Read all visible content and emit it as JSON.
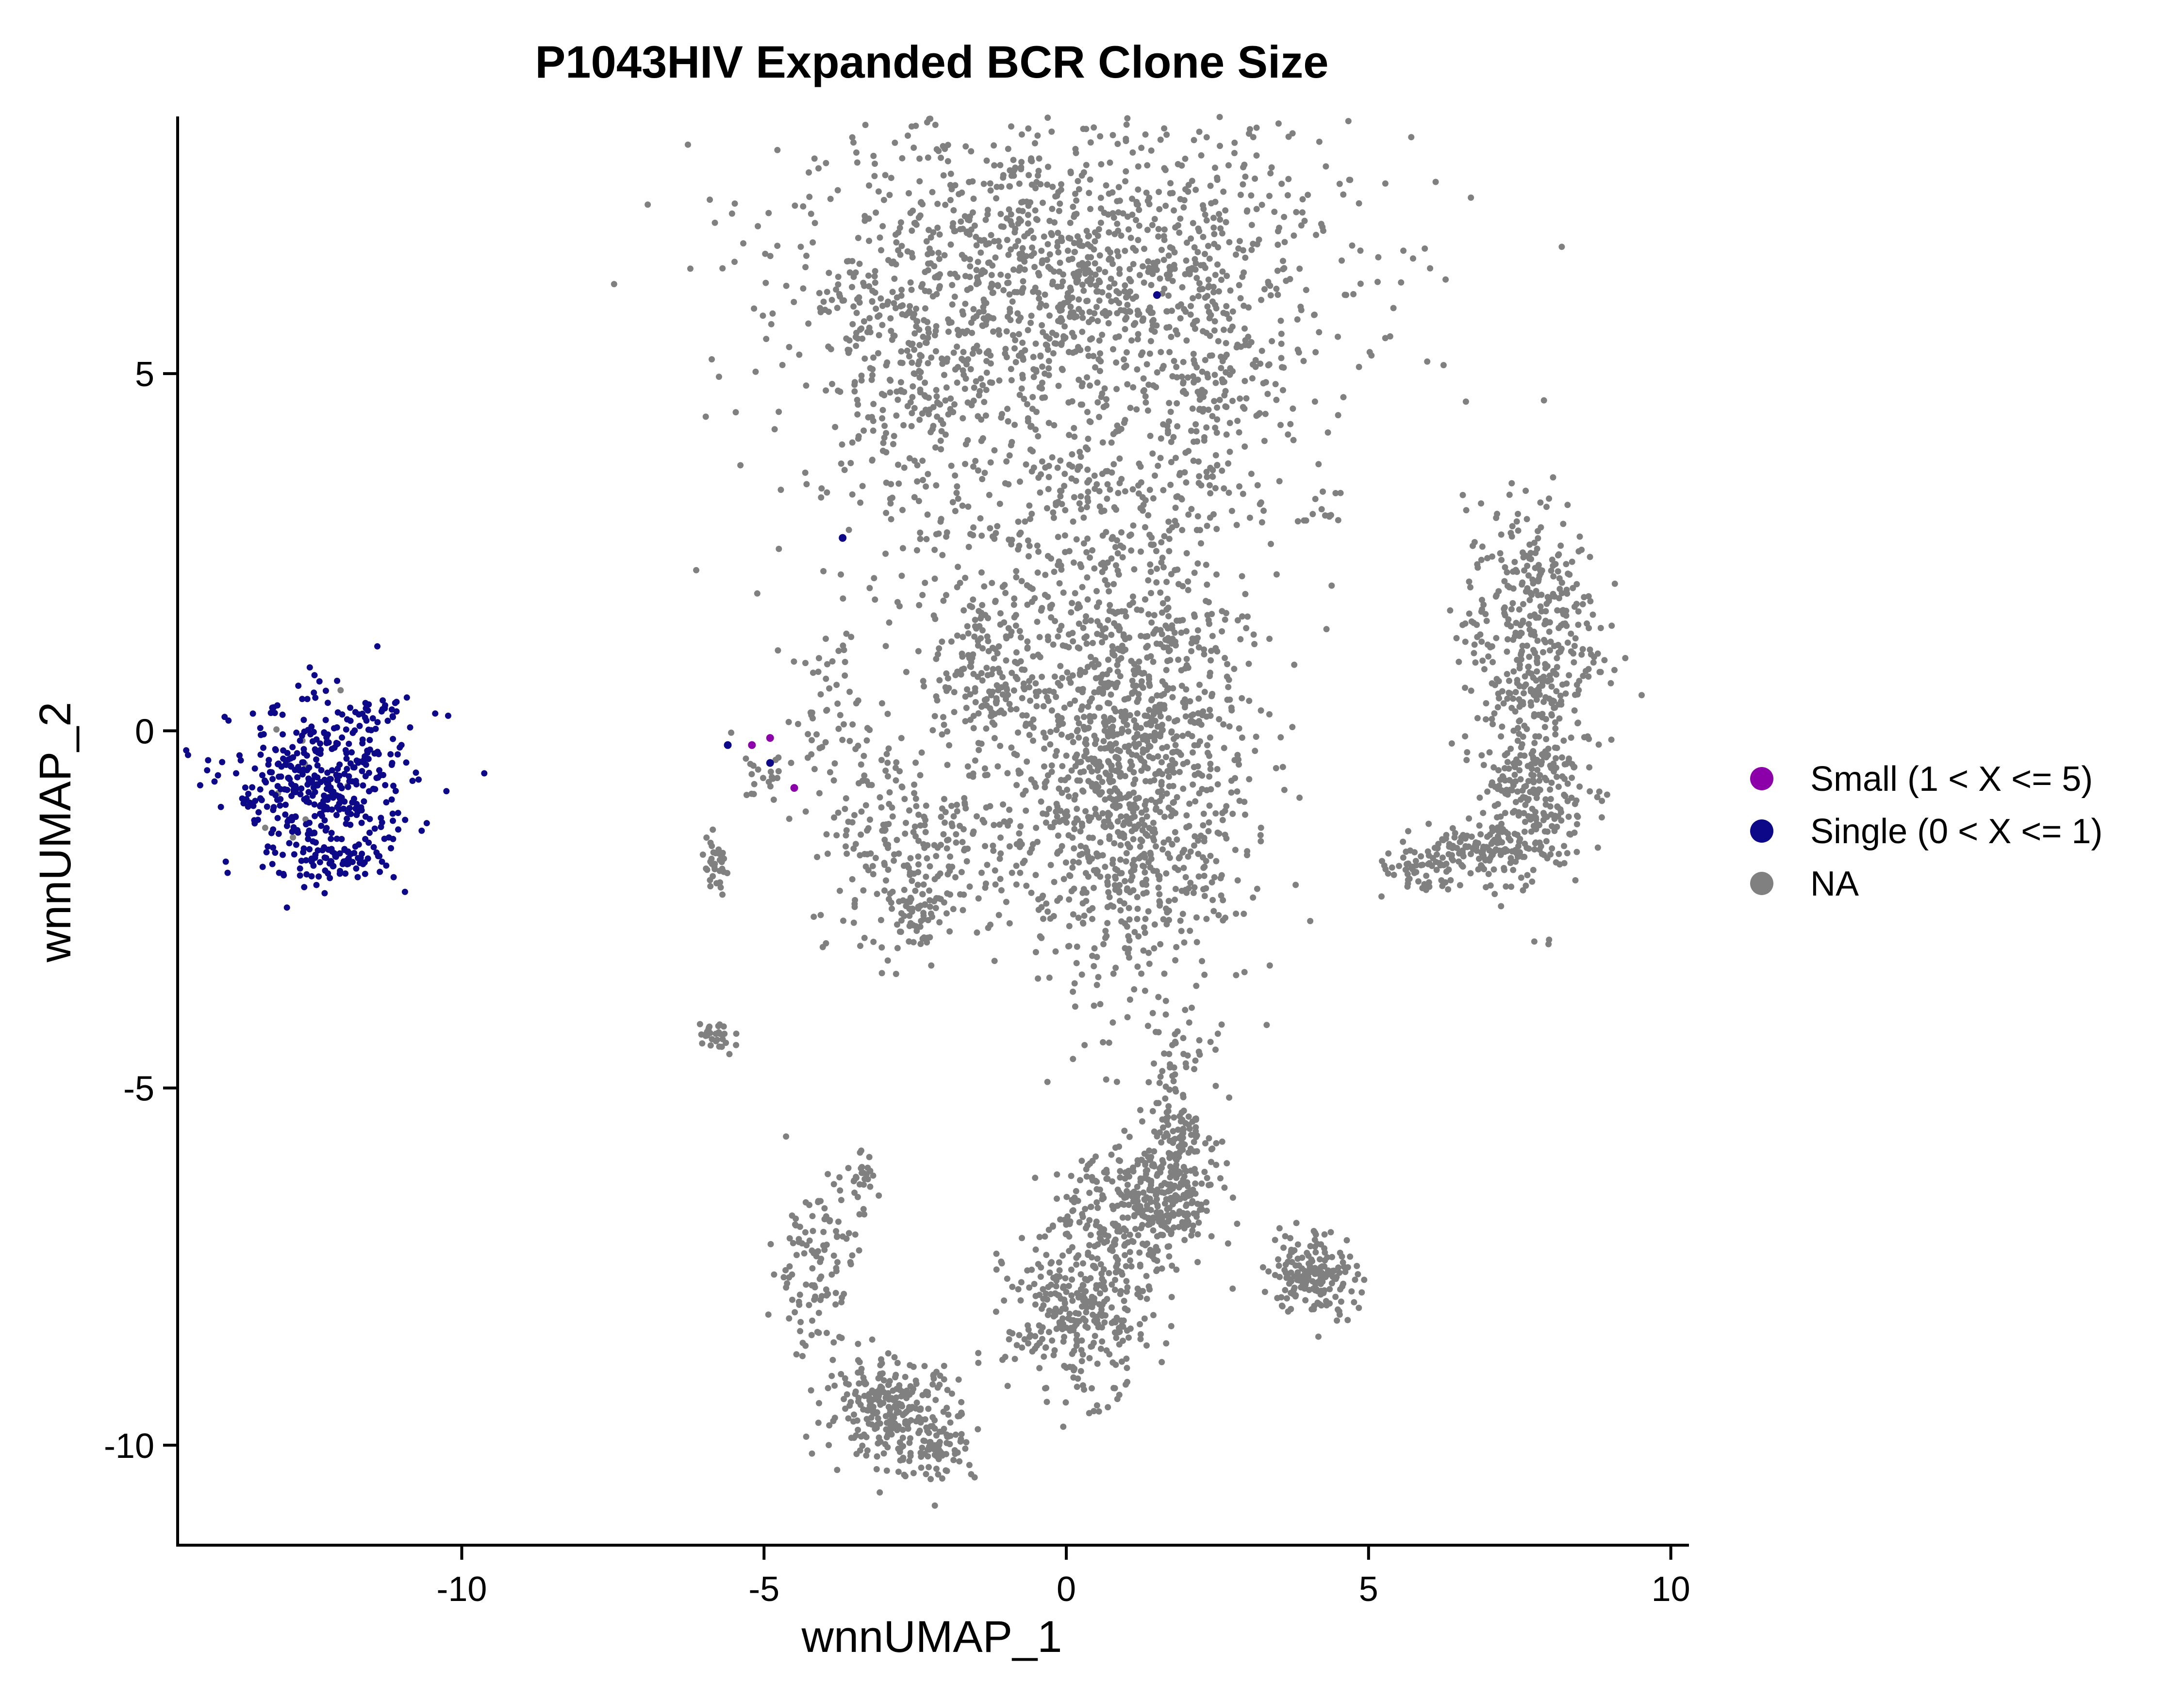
{
  "chart_data": {
    "type": "scatter",
    "title": "P1043HIV Expanded BCR Clone Size",
    "xlabel": "wnnUMAP_1",
    "ylabel": "wnnUMAP_2",
    "xlim": [
      -14.7,
      10.3
    ],
    "ylim": [
      -11.4,
      8.6
    ],
    "xticks": [
      -10,
      -5,
      0,
      5,
      10
    ],
    "yticks": [
      5,
      0,
      -5,
      -10
    ],
    "grid": false,
    "legend_position": "right",
    "series": [
      {
        "name": "Small (1 < X <= 5)",
        "color": "#8B00A8",
        "points": [
          [
            -5.2,
            -0.2
          ],
          [
            -4.9,
            -0.1
          ],
          [
            -4.5,
            -0.8
          ]
        ]
      },
      {
        "name": "Single (0 < X <= 1)",
        "color": "#0D0887",
        "clusters": [
          {
            "cx": -12.3,
            "cy": -0.8,
            "sx": 0.75,
            "sy": 0.6,
            "n": 420
          },
          {
            "cx": -11.3,
            "cy": 0.2,
            "sx": 0.3,
            "sy": 0.12,
            "n": 18
          },
          {
            "cx": -12.2,
            "cy": -1.8,
            "sx": 0.45,
            "sy": 0.12,
            "n": 60
          }
        ],
        "points": [
          [
            -5.6,
            -0.2
          ],
          [
            -4.9,
            -0.45
          ],
          [
            -3.7,
            2.7
          ],
          [
            1.5,
            6.1
          ]
        ]
      },
      {
        "name": "NA",
        "color": "#808080",
        "clusters": [
          {
            "cx": 0.0,
            "cy": 6.4,
            "sx": 2.3,
            "sy": 1.1,
            "n": 1300
          },
          {
            "cx": -2.8,
            "cy": 5.0,
            "sx": 0.7,
            "sy": 0.9,
            "n": 150
          },
          {
            "cx": 2.4,
            "cy": 4.8,
            "sx": 0.6,
            "sy": 0.9,
            "n": 150
          },
          {
            "cx": -0.5,
            "cy": 3.2,
            "sx": 1.8,
            "sy": 1.0,
            "n": 380
          },
          {
            "cx": 1.0,
            "cy": -0.5,
            "sx": 1.0,
            "sy": 1.6,
            "n": 1300
          },
          {
            "cx": -1.4,
            "cy": 0.8,
            "sx": 0.4,
            "sy": 0.6,
            "n": 150
          },
          {
            "cx": -2.5,
            "cy": -1.5,
            "sx": 0.9,
            "sy": 0.7,
            "n": 220
          },
          {
            "cx": -2.5,
            "cy": -2.5,
            "sx": 0.3,
            "sy": 0.3,
            "n": 70
          },
          {
            "cx": -3.8,
            "cy": 0.2,
            "sx": 0.4,
            "sy": 0.6,
            "n": 60
          },
          {
            "cx": 7.7,
            "cy": 1.4,
            "sx": 0.55,
            "sy": 0.9,
            "n": 380
          },
          {
            "cx": 7.7,
            "cy": -0.8,
            "sx": 0.45,
            "sy": 0.7,
            "n": 280
          },
          {
            "cx": 6.8,
            "cy": -1.7,
            "sx": 0.4,
            "sy": 0.18,
            "n": 120
          },
          {
            "cx": 5.8,
            "cy": -2.0,
            "sx": 0.35,
            "sy": 0.18,
            "n": 50
          },
          {
            "cx": -5.8,
            "cy": -1.9,
            "sx": 0.12,
            "sy": 0.2,
            "n": 35
          },
          {
            "cx": -5.8,
            "cy": -4.3,
            "sx": 0.15,
            "sy": 0.15,
            "n": 30
          },
          {
            "cx": -5.0,
            "cy": -0.6,
            "sx": 0.2,
            "sy": 0.2,
            "n": 20
          },
          {
            "cx": 1.8,
            "cy": -5.5,
            "sx": 0.3,
            "sy": 0.6,
            "n": 150
          },
          {
            "cx": 1.6,
            "cy": -6.6,
            "sx": 0.45,
            "sy": 0.4,
            "n": 220
          },
          {
            "cx": 0.2,
            "cy": -8.2,
            "sx": 0.6,
            "sy": 0.55,
            "n": 320
          },
          {
            "cx": 0.8,
            "cy": -6.8,
            "sx": 0.6,
            "sy": 0.45,
            "n": 150
          },
          {
            "cx": 4.1,
            "cy": -7.6,
            "sx": 0.35,
            "sy": 0.3,
            "n": 180
          },
          {
            "cx": -4.2,
            "cy": -7.5,
            "sx": 0.35,
            "sy": 0.6,
            "n": 110
          },
          {
            "cx": -3.5,
            "cy": -6.3,
            "sx": 0.2,
            "sy": 0.2,
            "n": 30
          },
          {
            "cx": -2.9,
            "cy": -9.5,
            "sx": 0.55,
            "sy": 0.35,
            "n": 260
          },
          {
            "cx": -2.2,
            "cy": -10.0,
            "sx": 0.35,
            "sy": 0.25,
            "n": 80
          },
          {
            "cx": 4.4,
            "cy": 3.2,
            "sx": 0.15,
            "sy": 0.2,
            "n": 10
          },
          {
            "cx": -12.3,
            "cy": -0.8,
            "sx": 0.9,
            "sy": 0.5,
            "n": 10
          }
        ]
      }
    ]
  }
}
